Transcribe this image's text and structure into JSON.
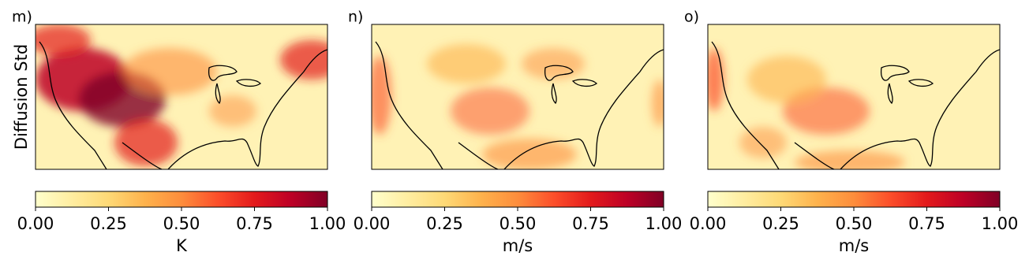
{
  "figure": {
    "ylabel": "Diffusion Std",
    "colormap": [
      "#ffffcc",
      "#ffeda0",
      "#fed976",
      "#feb24c",
      "#fd8d3c",
      "#fc4e2a",
      "#e31a1c",
      "#bd0026",
      "#800026"
    ],
    "panels": [
      {
        "label": "m)",
        "colorbar": {
          "label": "K",
          "lim": [
            0,
            1
          ],
          "ticks": [
            {
              "value": 0,
              "label": "0.00"
            },
            {
              "value": 0.25,
              "label": "0.25"
            },
            {
              "value": 0.5,
              "label": "0.50"
            },
            {
              "value": 0.75,
              "label": "0.75"
            },
            {
              "value": 1,
              "label": "1.00"
            }
          ]
        }
      },
      {
        "label": "n)",
        "colorbar": {
          "label": "m/s",
          "lim": [
            0,
            1
          ],
          "ticks": [
            {
              "value": 0,
              "label": "0.00"
            },
            {
              "value": 0.25,
              "label": "0.25"
            },
            {
              "value": 0.5,
              "label": "0.50"
            },
            {
              "value": 0.75,
              "label": "0.75"
            },
            {
              "value": 1,
              "label": "1.00"
            }
          ]
        }
      },
      {
        "label": "o)",
        "colorbar": {
          "label": "m/s",
          "lim": [
            0,
            1
          ],
          "ticks": [
            {
              "value": 0,
              "label": "0.00"
            },
            {
              "value": 0.25,
              "label": "0.25"
            },
            {
              "value": 0.5,
              "label": "0.50"
            },
            {
              "value": 0.75,
              "label": "0.75"
            },
            {
              "value": 1,
              "label": "1.00"
            }
          ]
        }
      }
    ]
  }
}
